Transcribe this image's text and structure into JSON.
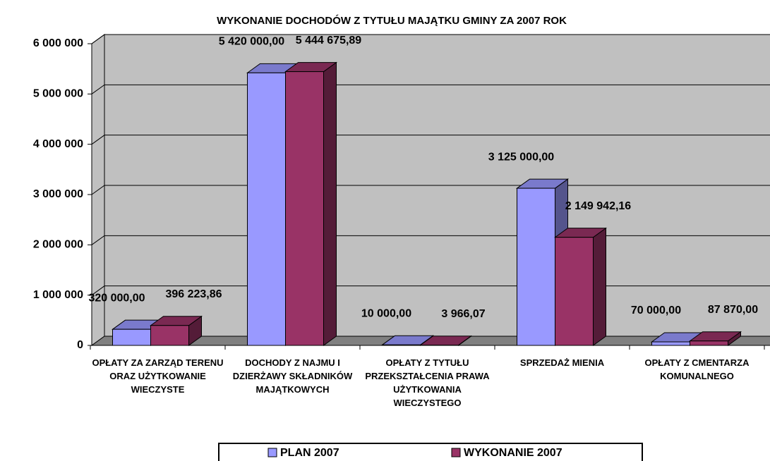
{
  "chart_data": {
    "type": "bar3d",
    "title": "WYKONANIE DOCHODÓW Z TYTUŁU MAJĄTKU GMINY ZA 2007 ROK",
    "categories": [
      "OPŁATY ZA ZARZĄD TERENU ORAZ UŻYTKOWANIE WIECZYSTE",
      "DOCHODY Z NAJMU I DZIERŻAWY SKŁADNIKÓW MAJĄTKOWYCH",
      "OPŁATY Z TYTUŁU PRZEKSZTAŁCENIA PRAWA UŻYTKOWANIA WIECZYSTEGO",
      "SPRZEDAŻ MIENIA",
      "OPŁATY Z CMENTARZA KOMUNALNEGO"
    ],
    "series": [
      {
        "name": "PLAN 2007",
        "color": "#9999ff",
        "values": [
          320000,
          5420000,
          10000,
          3125000,
          70000
        ],
        "value_labels": [
          "320 000,00",
          "5 420 000,00",
          "10 000,00",
          "3 125 000,00",
          "70 000,00"
        ]
      },
      {
        "name": "WYKONANIE 2007",
        "color": "#993366",
        "values": [
          396223.86,
          5444675.89,
          3966.07,
          2149942.16,
          87870
        ],
        "value_labels": [
          "396 223,86",
          "5 444 675,89",
          "3 966,07",
          "2 149 942,16",
          "87 870,00"
        ]
      }
    ],
    "ylim": [
      0,
      6000000
    ],
    "yticks": [
      {
        "value": 0,
        "label": "0"
      },
      {
        "value": 1000000,
        "label": "1 000 000"
      },
      {
        "value": 2000000,
        "label": "2 000 000"
      },
      {
        "value": 3000000,
        "label": "3 000 000"
      },
      {
        "value": 4000000,
        "label": "4 000 000"
      },
      {
        "value": 5000000,
        "label": "5 000 000"
      },
      {
        "value": 6000000,
        "label": "6 000 000"
      }
    ],
    "grid": true,
    "legend": "bottom"
  }
}
